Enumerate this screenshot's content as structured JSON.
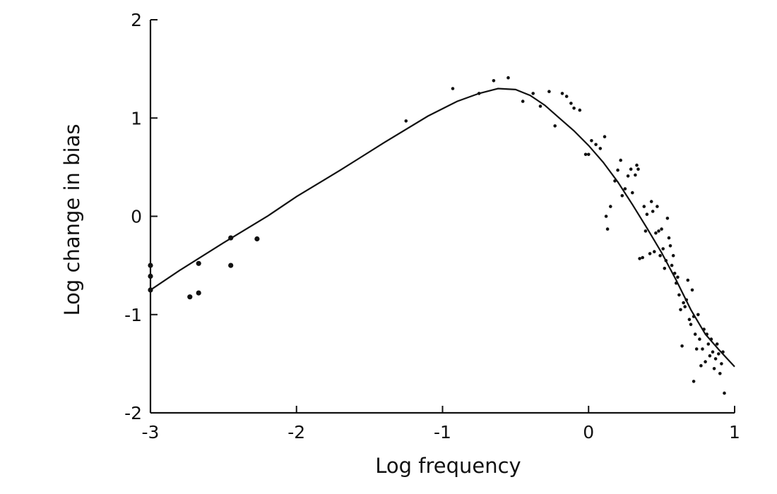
{
  "chart_data": {
    "type": "scatter",
    "title": "",
    "xlabel": "Log frequency",
    "ylabel": "Log change in bias",
    "xlim": [
      -3,
      1
    ],
    "ylim": [
      -2,
      2
    ],
    "x_ticks": [
      -3,
      -2,
      -1,
      0,
      1
    ],
    "x_tick_labels": [
      "-3",
      "-2",
      "-1",
      "0",
      "1"
    ],
    "y_ticks": [
      -2,
      -1,
      0,
      1,
      2
    ],
    "y_tick_labels": [
      "-2",
      "-1",
      "0",
      "1",
      "2"
    ],
    "grid": false,
    "legend": "none",
    "series": [
      {
        "kind": "points",
        "points": [
          [
            -3.0,
            -0.5
          ],
          [
            -3.0,
            -0.61
          ],
          [
            -3.0,
            -0.75
          ],
          [
            -2.73,
            -0.82
          ],
          [
            -2.67,
            -0.78
          ],
          [
            -2.67,
            -0.48
          ],
          [
            -2.45,
            -0.22
          ],
          [
            -2.45,
            -0.5
          ],
          [
            -2.27,
            -0.23
          ],
          [
            -1.25,
            0.97
          ],
          [
            -0.93,
            1.3
          ],
          [
            -0.75,
            1.25
          ],
          [
            -0.65,
            1.38
          ],
          [
            -0.55,
            1.41
          ],
          [
            -0.45,
            1.17
          ],
          [
            -0.38,
            1.25
          ],
          [
            -0.33,
            1.12
          ],
          [
            -0.27,
            1.27
          ],
          [
            -0.23,
            0.92
          ],
          [
            -0.18,
            1.25
          ],
          [
            -0.15,
            1.22
          ],
          [
            -0.12,
            1.15
          ],
          [
            -0.1,
            1.1
          ],
          [
            -0.06,
            1.08
          ],
          [
            -0.02,
            0.63
          ],
          [
            0.0,
            0.63
          ],
          [
            0.02,
            0.77
          ],
          [
            0.05,
            0.73
          ],
          [
            0.08,
            0.69
          ],
          [
            0.11,
            0.81
          ],
          [
            0.12,
            0.0
          ],
          [
            0.13,
            -0.13
          ],
          [
            0.15,
            0.1
          ],
          [
            0.18,
            0.36
          ],
          [
            0.2,
            0.47
          ],
          [
            0.22,
            0.57
          ],
          [
            0.23,
            0.21
          ],
          [
            0.25,
            0.28
          ],
          [
            0.27,
            0.41
          ],
          [
            0.29,
            0.48
          ],
          [
            0.3,
            0.24
          ],
          [
            0.32,
            0.42
          ],
          [
            0.33,
            0.52
          ],
          [
            0.34,
            0.48
          ],
          [
            0.35,
            -0.43
          ],
          [
            0.37,
            -0.42
          ],
          [
            0.38,
            0.1
          ],
          [
            0.39,
            -0.15
          ],
          [
            0.4,
            0.02
          ],
          [
            0.42,
            -0.38
          ],
          [
            0.43,
            0.15
          ],
          [
            0.44,
            0.05
          ],
          [
            0.45,
            -0.36
          ],
          [
            0.46,
            -0.17
          ],
          [
            0.47,
            0.1
          ],
          [
            0.48,
            -0.15
          ],
          [
            0.49,
            -0.4
          ],
          [
            0.5,
            -0.13
          ],
          [
            0.51,
            -0.33
          ],
          [
            0.52,
            -0.53
          ],
          [
            0.53,
            -0.45
          ],
          [
            0.54,
            -0.02
          ],
          [
            0.55,
            -0.22
          ],
          [
            0.56,
            -0.3
          ],
          [
            0.57,
            -0.5
          ],
          [
            0.58,
            -0.4
          ],
          [
            0.59,
            -0.58
          ],
          [
            0.6,
            -0.68
          ],
          [
            0.61,
            -0.62
          ],
          [
            0.62,
            -0.8
          ],
          [
            0.63,
            -0.95
          ],
          [
            0.64,
            -1.32
          ],
          [
            0.65,
            -0.88
          ],
          [
            0.66,
            -0.92
          ],
          [
            0.67,
            -0.85
          ],
          [
            0.68,
            -0.65
          ],
          [
            0.69,
            -1.05
          ],
          [
            0.7,
            -1.1
          ],
          [
            0.71,
            -0.75
          ],
          [
            0.72,
            -1.02
          ],
          [
            0.72,
            -1.68
          ],
          [
            0.73,
            -1.2
          ],
          [
            0.74,
            -1.35
          ],
          [
            0.75,
            -1.0
          ],
          [
            0.76,
            -1.25
          ],
          [
            0.77,
            -1.52
          ],
          [
            0.78,
            -1.35
          ],
          [
            0.79,
            -1.15
          ],
          [
            0.8,
            -1.48
          ],
          [
            0.81,
            -1.2
          ],
          [
            0.82,
            -1.3
          ],
          [
            0.83,
            -1.42
          ],
          [
            0.84,
            -1.25
          ],
          [
            0.85,
            -1.38
          ],
          [
            0.86,
            -1.55
          ],
          [
            0.87,
            -1.45
          ],
          [
            0.88,
            -1.3
          ],
          [
            0.89,
            -1.4
          ],
          [
            0.9,
            -1.6
          ],
          [
            0.91,
            -1.5
          ],
          [
            0.92,
            -1.38
          ],
          [
            0.93,
            -1.8
          ]
        ]
      },
      {
        "kind": "fitted-curve",
        "points": [
          [
            -3.0,
            -0.75
          ],
          [
            -2.8,
            -0.55
          ],
          [
            -2.5,
            -0.27
          ],
          [
            -2.2,
            0.0
          ],
          [
            -2.0,
            0.2
          ],
          [
            -1.7,
            0.47
          ],
          [
            -1.4,
            0.75
          ],
          [
            -1.1,
            1.02
          ],
          [
            -0.9,
            1.17
          ],
          [
            -0.75,
            1.25
          ],
          [
            -0.62,
            1.3
          ],
          [
            -0.5,
            1.29
          ],
          [
            -0.4,
            1.23
          ],
          [
            -0.3,
            1.13
          ],
          [
            -0.2,
            1.0
          ],
          [
            -0.1,
            0.87
          ],
          [
            0.0,
            0.72
          ],
          [
            0.1,
            0.55
          ],
          [
            0.2,
            0.35
          ],
          [
            0.3,
            0.12
          ],
          [
            0.4,
            -0.12
          ],
          [
            0.5,
            -0.37
          ],
          [
            0.6,
            -0.65
          ],
          [
            0.7,
            -0.95
          ],
          [
            0.8,
            -1.2
          ],
          [
            0.9,
            -1.37
          ],
          [
            1.0,
            -1.53
          ]
        ]
      }
    ]
  }
}
